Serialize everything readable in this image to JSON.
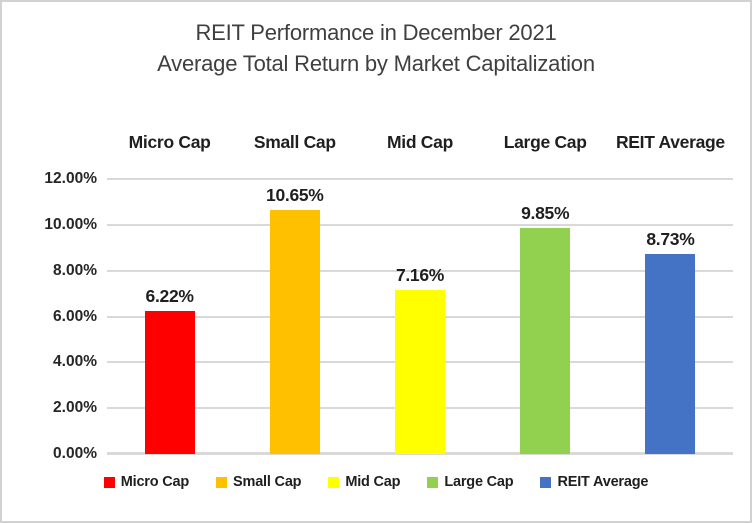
{
  "title": {
    "line1": "REIT Performance in December 2021",
    "line2": "Average Total Return by Market Capitalization"
  },
  "chart_data": {
    "type": "bar",
    "title": "REIT Performance in December 2021",
    "subtitle": "Average Total Return by Market Capitalization",
    "categories": [
      "Micro Cap",
      "Small Cap",
      "Mid Cap",
      "Large Cap",
      "REIT Average"
    ],
    "values": [
      6.22,
      10.65,
      7.16,
      9.85,
      8.73
    ],
    "data_labels": [
      "6.22%",
      "10.65%",
      "7.16%",
      "9.85%",
      "8.73%"
    ],
    "bar_colors": [
      "#FF0000",
      "#FFC000",
      "#FFFF00",
      "#92D050",
      "#4472C4"
    ],
    "xlabel": "",
    "ylabel": "",
    "ylim": [
      0,
      12
    ],
    "ytick_values": [
      0,
      2,
      4,
      6,
      8,
      10,
      12
    ],
    "ytick_labels": [
      "0.00%",
      "2.00%",
      "4.00%",
      "6.00%",
      "8.00%",
      "10.00%",
      "12.00%"
    ],
    "grid": true,
    "category_labels_position": "top",
    "legend": {
      "position": "bottom",
      "entries": [
        "Micro Cap",
        "Small Cap",
        "Mid Cap",
        "Large Cap",
        "REIT Average"
      ]
    }
  },
  "colors": {
    "grid": "#d9d9d9",
    "frame_border": "#d1d1d1",
    "title_text": "#3f3f3f",
    "label_text": "#1f1f1f",
    "tick_text": "#262626",
    "background": "#ffffff"
  }
}
